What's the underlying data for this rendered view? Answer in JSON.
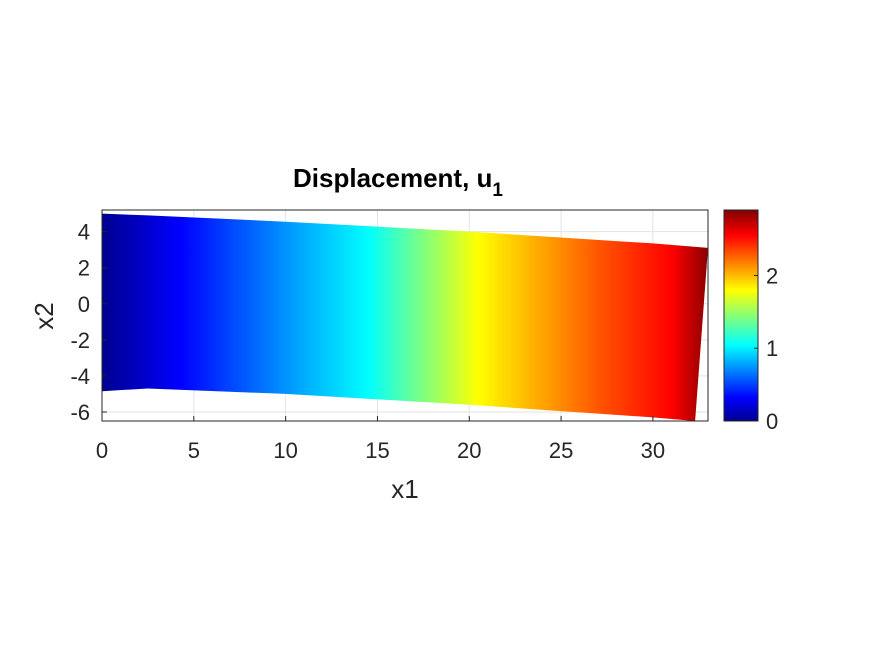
{
  "chart_data": {
    "type": "heatmap",
    "title": "Displacement, u",
    "title_subscript": "1",
    "xlabel": "x1",
    "ylabel": "x2",
    "xlim": [
      0,
      33
    ],
    "ylim": [
      -6.5,
      5.2
    ],
    "xticks": [
      "0",
      "5",
      "10",
      "15",
      "20",
      "25",
      "30"
    ],
    "yticks": [
      "-6",
      "-4",
      "-2",
      "0",
      "2",
      "4"
    ],
    "grid": true,
    "colormap": "jet",
    "colorbar": {
      "ticks": [
        "0",
        "1",
        "2"
      ],
      "range": [
        0,
        2.9
      ]
    },
    "domain_outline": {
      "top_edge": [
        [
          0,
          5.0
        ],
        [
          2.5,
          4.9
        ],
        [
          10,
          4.55
        ],
        [
          20,
          4.0
        ],
        [
          30,
          3.35
        ],
        [
          33,
          3.1
        ]
      ],
      "bottom_edge": [
        [
          0,
          -4.85
        ],
        [
          2.5,
          -4.7
        ],
        [
          10,
          -5.0
        ],
        [
          20,
          -5.6
        ],
        [
          30,
          -6.3
        ],
        [
          32.3,
          -6.5
        ]
      ]
    },
    "field_samples": [
      {
        "x1": 0,
        "u1": 0.0
      },
      {
        "x1": 5,
        "u1": 0.45
      },
      {
        "x1": 10,
        "u1": 0.9
      },
      {
        "x1": 15,
        "u1": 1.35
      },
      {
        "x1": 20,
        "u1": 1.8
      },
      {
        "x1": 25,
        "u1": 2.25
      },
      {
        "x1": 30,
        "u1": 2.65
      },
      {
        "x1": 33,
        "u1": 2.9
      }
    ]
  }
}
